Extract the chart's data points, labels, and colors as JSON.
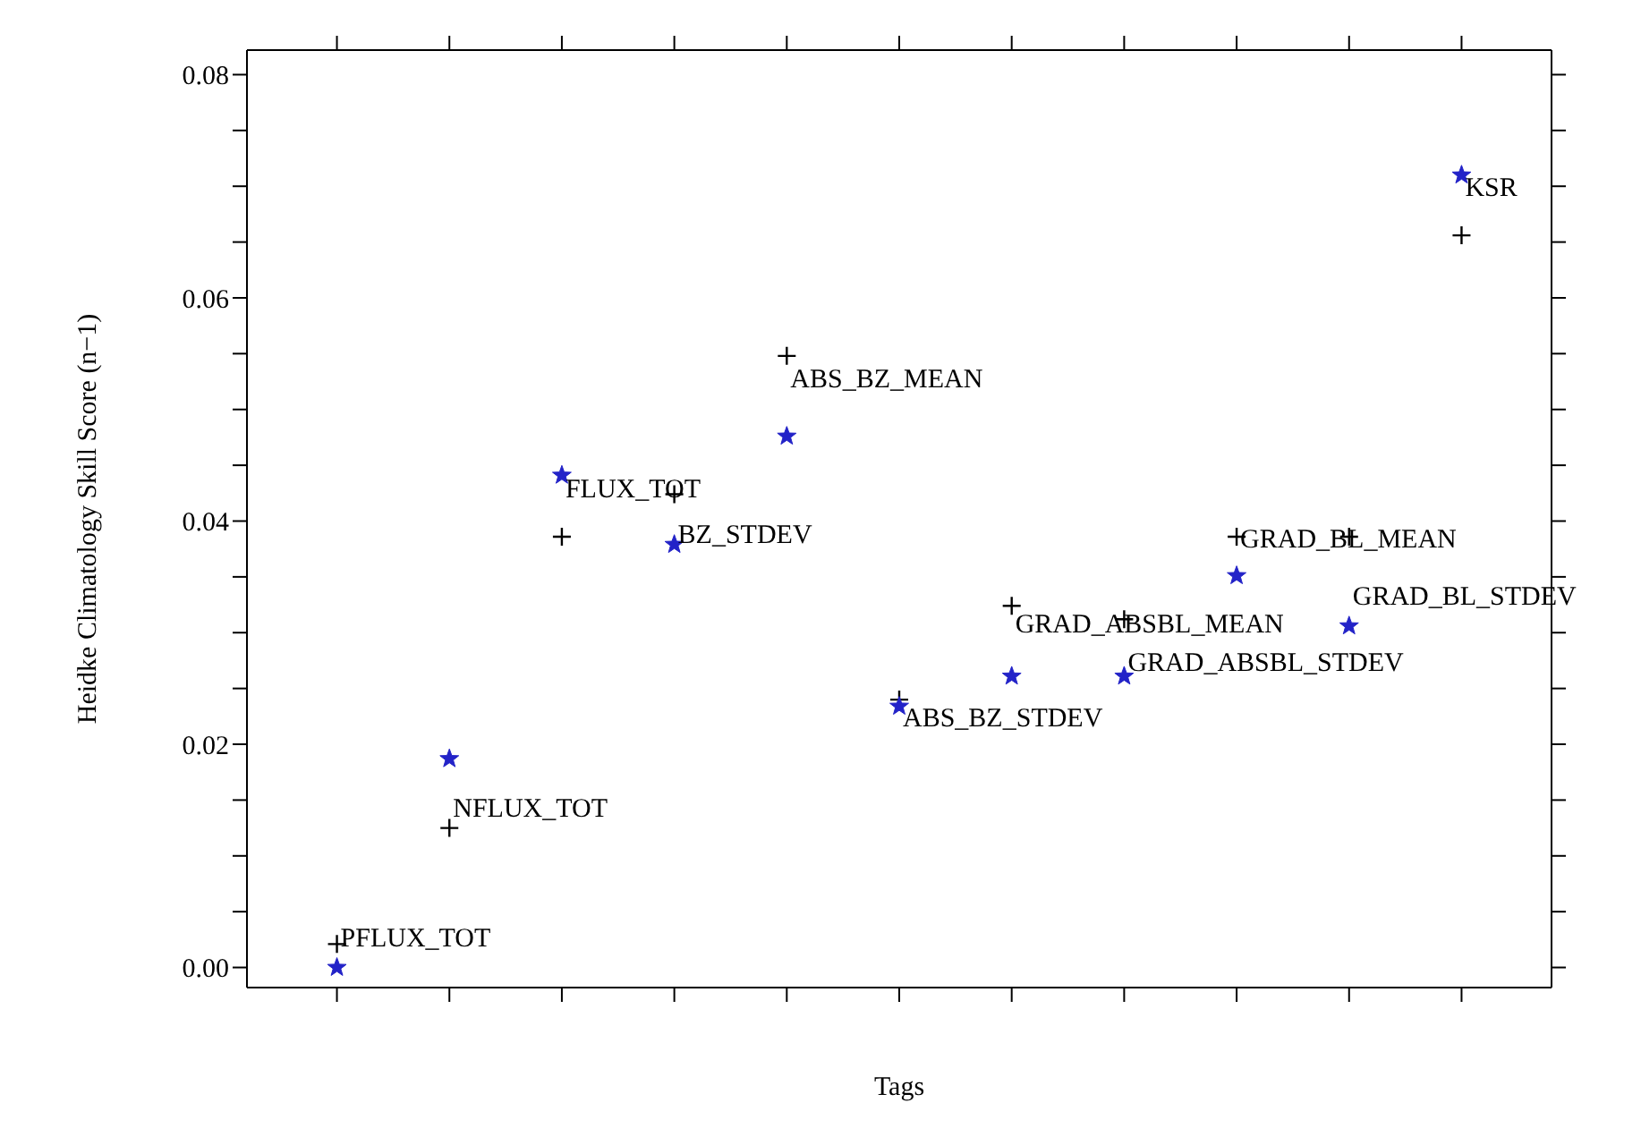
{
  "chart_data": {
    "type": "scatter",
    "xlabel": "Tags",
    "ylabel": "Heidke Climatology Skill Score (n−1)",
    "categories": [
      null,
      null,
      null,
      null,
      null,
      null,
      null,
      null,
      null,
      null,
      null
    ],
    "series": [
      {
        "color": "#000000",
        "marker": "cross",
        "values": [
          0.0021,
          0.0125,
          0.0386,
          0.0424,
          0.0548,
          0.024,
          0.0324,
          0.0312,
          0.0386,
          0.0386,
          0.0656
        ]
      },
      {
        "color": "#2323c8",
        "marker": "star",
        "values": [
          0.0,
          0.0187,
          0.0441,
          0.0379,
          0.0476,
          0.0234,
          0.0261,
          0.0261,
          0.0351,
          0.0306,
          0.071
        ]
      }
    ],
    "ylim": [
      -0.0018,
      0.0822
    ],
    "yticks": [
      {
        "value": 0,
        "label": "0.00"
      },
      {
        "value": 0.005,
        "label": null
      },
      {
        "value": 0.01,
        "label": null
      },
      {
        "value": 0.015,
        "label": null
      },
      {
        "value": 0.02,
        "label": "0.02"
      },
      {
        "value": 0.025,
        "label": null
      },
      {
        "value": 0.03,
        "label": null
      },
      {
        "value": 0.035,
        "label": null
      },
      {
        "value": 0.04,
        "label": "0.04"
      },
      {
        "value": 0.045,
        "label": null
      },
      {
        "value": 0.05,
        "label": null
      },
      {
        "value": 0.055,
        "label": null
      },
      {
        "value": 0.06,
        "label": "0.06"
      },
      {
        "value": 0.065,
        "label": null
      },
      {
        "value": 0.07,
        "label": null
      },
      {
        "value": 0.075,
        "label": null
      },
      {
        "value": 0.08,
        "label": "0.08"
      }
    ],
    "tick_labels": "y",
    "annotations": [
      "PFLUX_TOT",
      "NFLUX_TOT",
      "FLUX_TOT",
      "BZ_STDEV",
      "ABS_BZ_MEAN",
      "ABS_BZ_STDEV",
      "GRAD_ABSBL_MEAN",
      "GRAD_ABSBL_STDEV",
      "GRAD_BL_MEAN",
      "GRAD_BL_STDEV",
      "KSR"
    ]
  }
}
